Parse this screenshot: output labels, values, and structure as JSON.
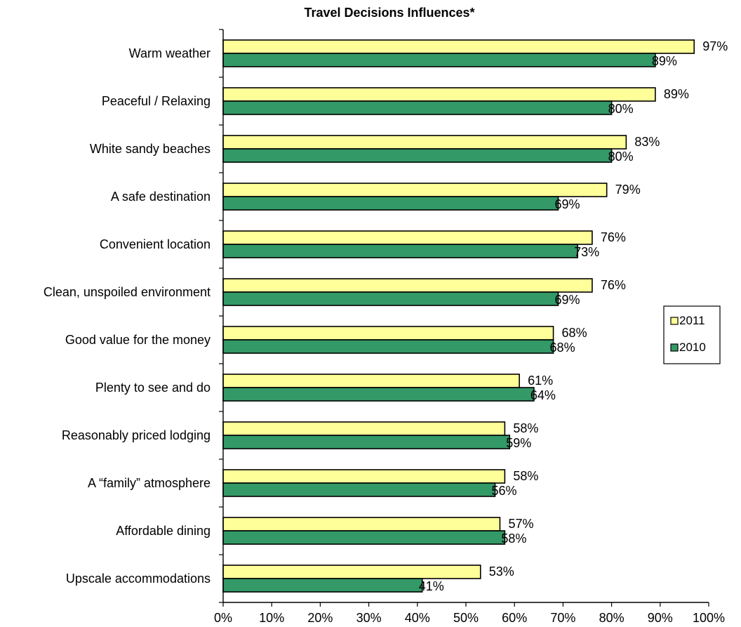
{
  "chart_data": {
    "type": "bar",
    "orientation": "horizontal",
    "title": "Travel Decisions Influences*",
    "xlabel": "",
    "ylabel": "",
    "xlim": [
      0,
      100
    ],
    "x_ticks": [
      "0%",
      "10%",
      "20%",
      "30%",
      "40%",
      "50%",
      "60%",
      "70%",
      "80%",
      "90%",
      "100%"
    ],
    "grid": false,
    "legend_position": "right",
    "categories": [
      "Warm weather",
      "Peaceful / Relaxing",
      "White sandy beaches",
      "A safe destination",
      "Convenient location",
      "Clean, unspoiled environment",
      "Good value for the money",
      "Plenty to see and do",
      "Reasonably priced lodging",
      "A “family” atmosphere",
      "Affordable dining",
      "Upscale accommodations"
    ],
    "series": [
      {
        "name": "2011",
        "color": "#ffff99",
        "values": [
          97,
          89,
          83,
          79,
          76,
          76,
          68,
          61,
          58,
          58,
          57,
          53
        ],
        "labels": [
          "97%",
          "89%",
          "83%",
          "79%",
          "76%",
          "76%",
          "68%",
          "61%",
          "58%",
          "58%",
          "57%",
          "53%"
        ]
      },
      {
        "name": "2010",
        "color": "#339966",
        "values": [
          89,
          80,
          80,
          69,
          73,
          69,
          68,
          64,
          59,
          56,
          58,
          41
        ],
        "labels": [
          "89%",
          "80%",
          "80%",
          "69%",
          "73%",
          "69%",
          "68%",
          "64%",
          "59%",
          "56%",
          "58%",
          "41%"
        ]
      }
    ]
  }
}
